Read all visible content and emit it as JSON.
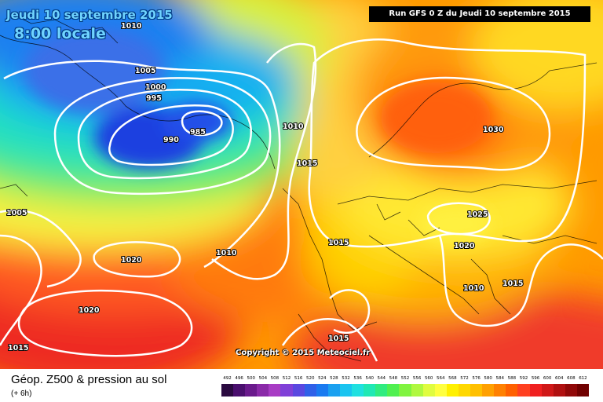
{
  "header": {
    "date_label": "Jeudi 10 septembre 2015",
    "time_label": "8:00 locale",
    "run_label": "Run GFS 0 Z du Jeudi 10 septembre 2015"
  },
  "copyright": "Copyright © 2015 Meteociel.fr",
  "footer": {
    "title": "Géop. Z500 & pression au sol",
    "subtitle": "(+ 6h)"
  },
  "legend": {
    "labels": [
      "492",
      "496",
      "500",
      "504",
      "508",
      "512",
      "516",
      "520",
      "524",
      "528",
      "532",
      "536",
      "540",
      "544",
      "548",
      "552",
      "556",
      "560",
      "564",
      "568",
      "572",
      "576",
      "580",
      "584",
      "588",
      "592",
      "596",
      "600",
      "604",
      "608",
      "612"
    ],
    "colors": [
      "#2a0a40",
      "#4a0f6e",
      "#6a1a8c",
      "#8a2aa8",
      "#a83cc4",
      "#8040d8",
      "#5a48e0",
      "#3060e8",
      "#1a7af0",
      "#1aa0f0",
      "#1ac4f0",
      "#20e0e0",
      "#20e8b4",
      "#30ec80",
      "#50f050",
      "#80f440",
      "#b0f840",
      "#e0fc40",
      "#ffff40",
      "#fff000",
      "#ffd800",
      "#ffc000",
      "#ffa000",
      "#ff8000",
      "#ff6000",
      "#ff4020",
      "#f02020",
      "#d01818",
      "#b01010",
      "#900808",
      "#700000"
    ]
  },
  "isobars": {
    "labels": [
      "1010",
      "1005",
      "1000",
      "995",
      "990",
      "985",
      "1010",
      "1015",
      "1030",
      "1005",
      "1020",
      "1010",
      "1015",
      "1025",
      "1020",
      "1015",
      "1010",
      "1020",
      "1015",
      "1015"
    ]
  }
}
